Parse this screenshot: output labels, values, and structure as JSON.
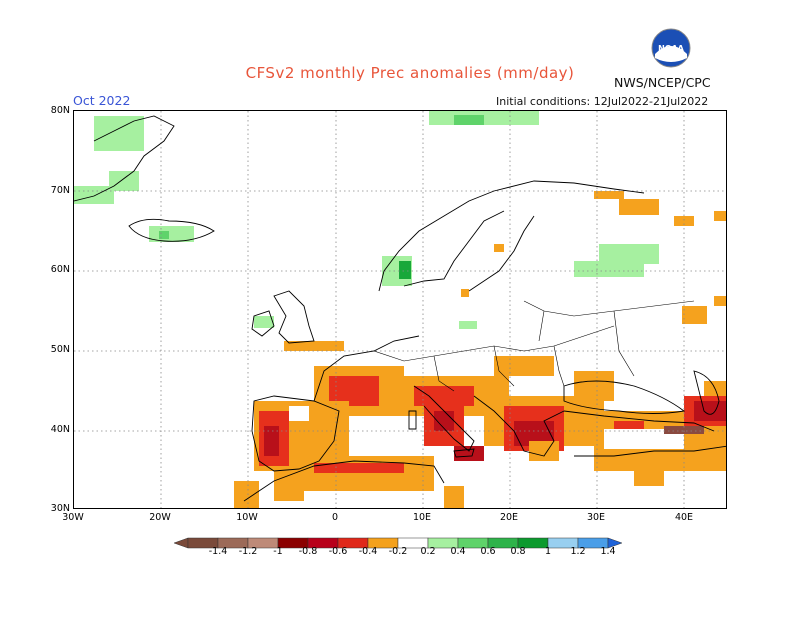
{
  "header": {
    "title": "CFSv2 monthly Prec anomalies (mm/day)",
    "month": "Oct 2022",
    "agency": "NWS/NCEP/CPC",
    "initial": "Initial conditions: 12Jul2022-21Jul2022",
    "logo_text": "NOAA"
  },
  "axes": {
    "lat_labels": [
      "80N",
      "70N",
      "60N",
      "50N",
      "40N",
      "30N"
    ],
    "lon_labels": [
      "30W",
      "20W",
      "10W",
      "0",
      "10E",
      "20E",
      "30E",
      "40E"
    ]
  },
  "colorbar": {
    "labels": [
      "-1.4",
      "-1.2",
      "-1",
      "-0.8",
      "-0.6",
      "-0.4",
      "-0.2",
      "0.2",
      "0.4",
      "0.6",
      "0.8",
      "1",
      "1.2",
      "1.4"
    ],
    "colors": [
      "#7a4a3a",
      "#9c6a58",
      "#be8a78",
      "#8b0000",
      "#b8001a",
      "#e0281a",
      "#f4a11c",
      "#ffffff",
      "#a6f0a0",
      "#5fd36a",
      "#2eb34a",
      "#0c9a2e",
      "#98cff0",
      "#4a9ee8"
    ],
    "left_arrow": "#7a4a3a",
    "right_arrow": "#1e62d8"
  },
  "legend_palette": {
    "orange": "#f5a21e",
    "red": "#e6301c",
    "darkred": "#b8101a",
    "brown": "#8a4a40",
    "lightgreen": "#a6f0a0",
    "green": "#5fd36a",
    "darkgreen": "#18a83a"
  }
}
